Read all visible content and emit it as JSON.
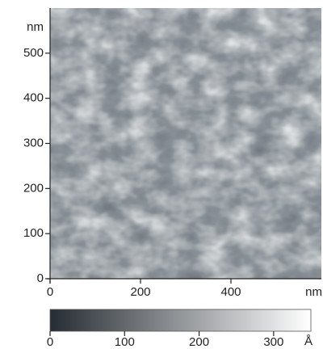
{
  "chart_data": {
    "type": "image",
    "x_unit": "nm",
    "y_unit": "nm",
    "xlim": [
      0,
      600
    ],
    "xticks": [
      0,
      200,
      400
    ],
    "ylim": [
      0,
      600
    ],
    "yticks": [
      0,
      100,
      200,
      300,
      400,
      500
    ],
    "colorbar": {
      "lim": [
        0,
        350
      ],
      "ticks": [
        0,
        100,
        200,
        300
      ],
      "unit": "Å",
      "colors": [
        "#262c33",
        "#ffffff"
      ]
    }
  }
}
